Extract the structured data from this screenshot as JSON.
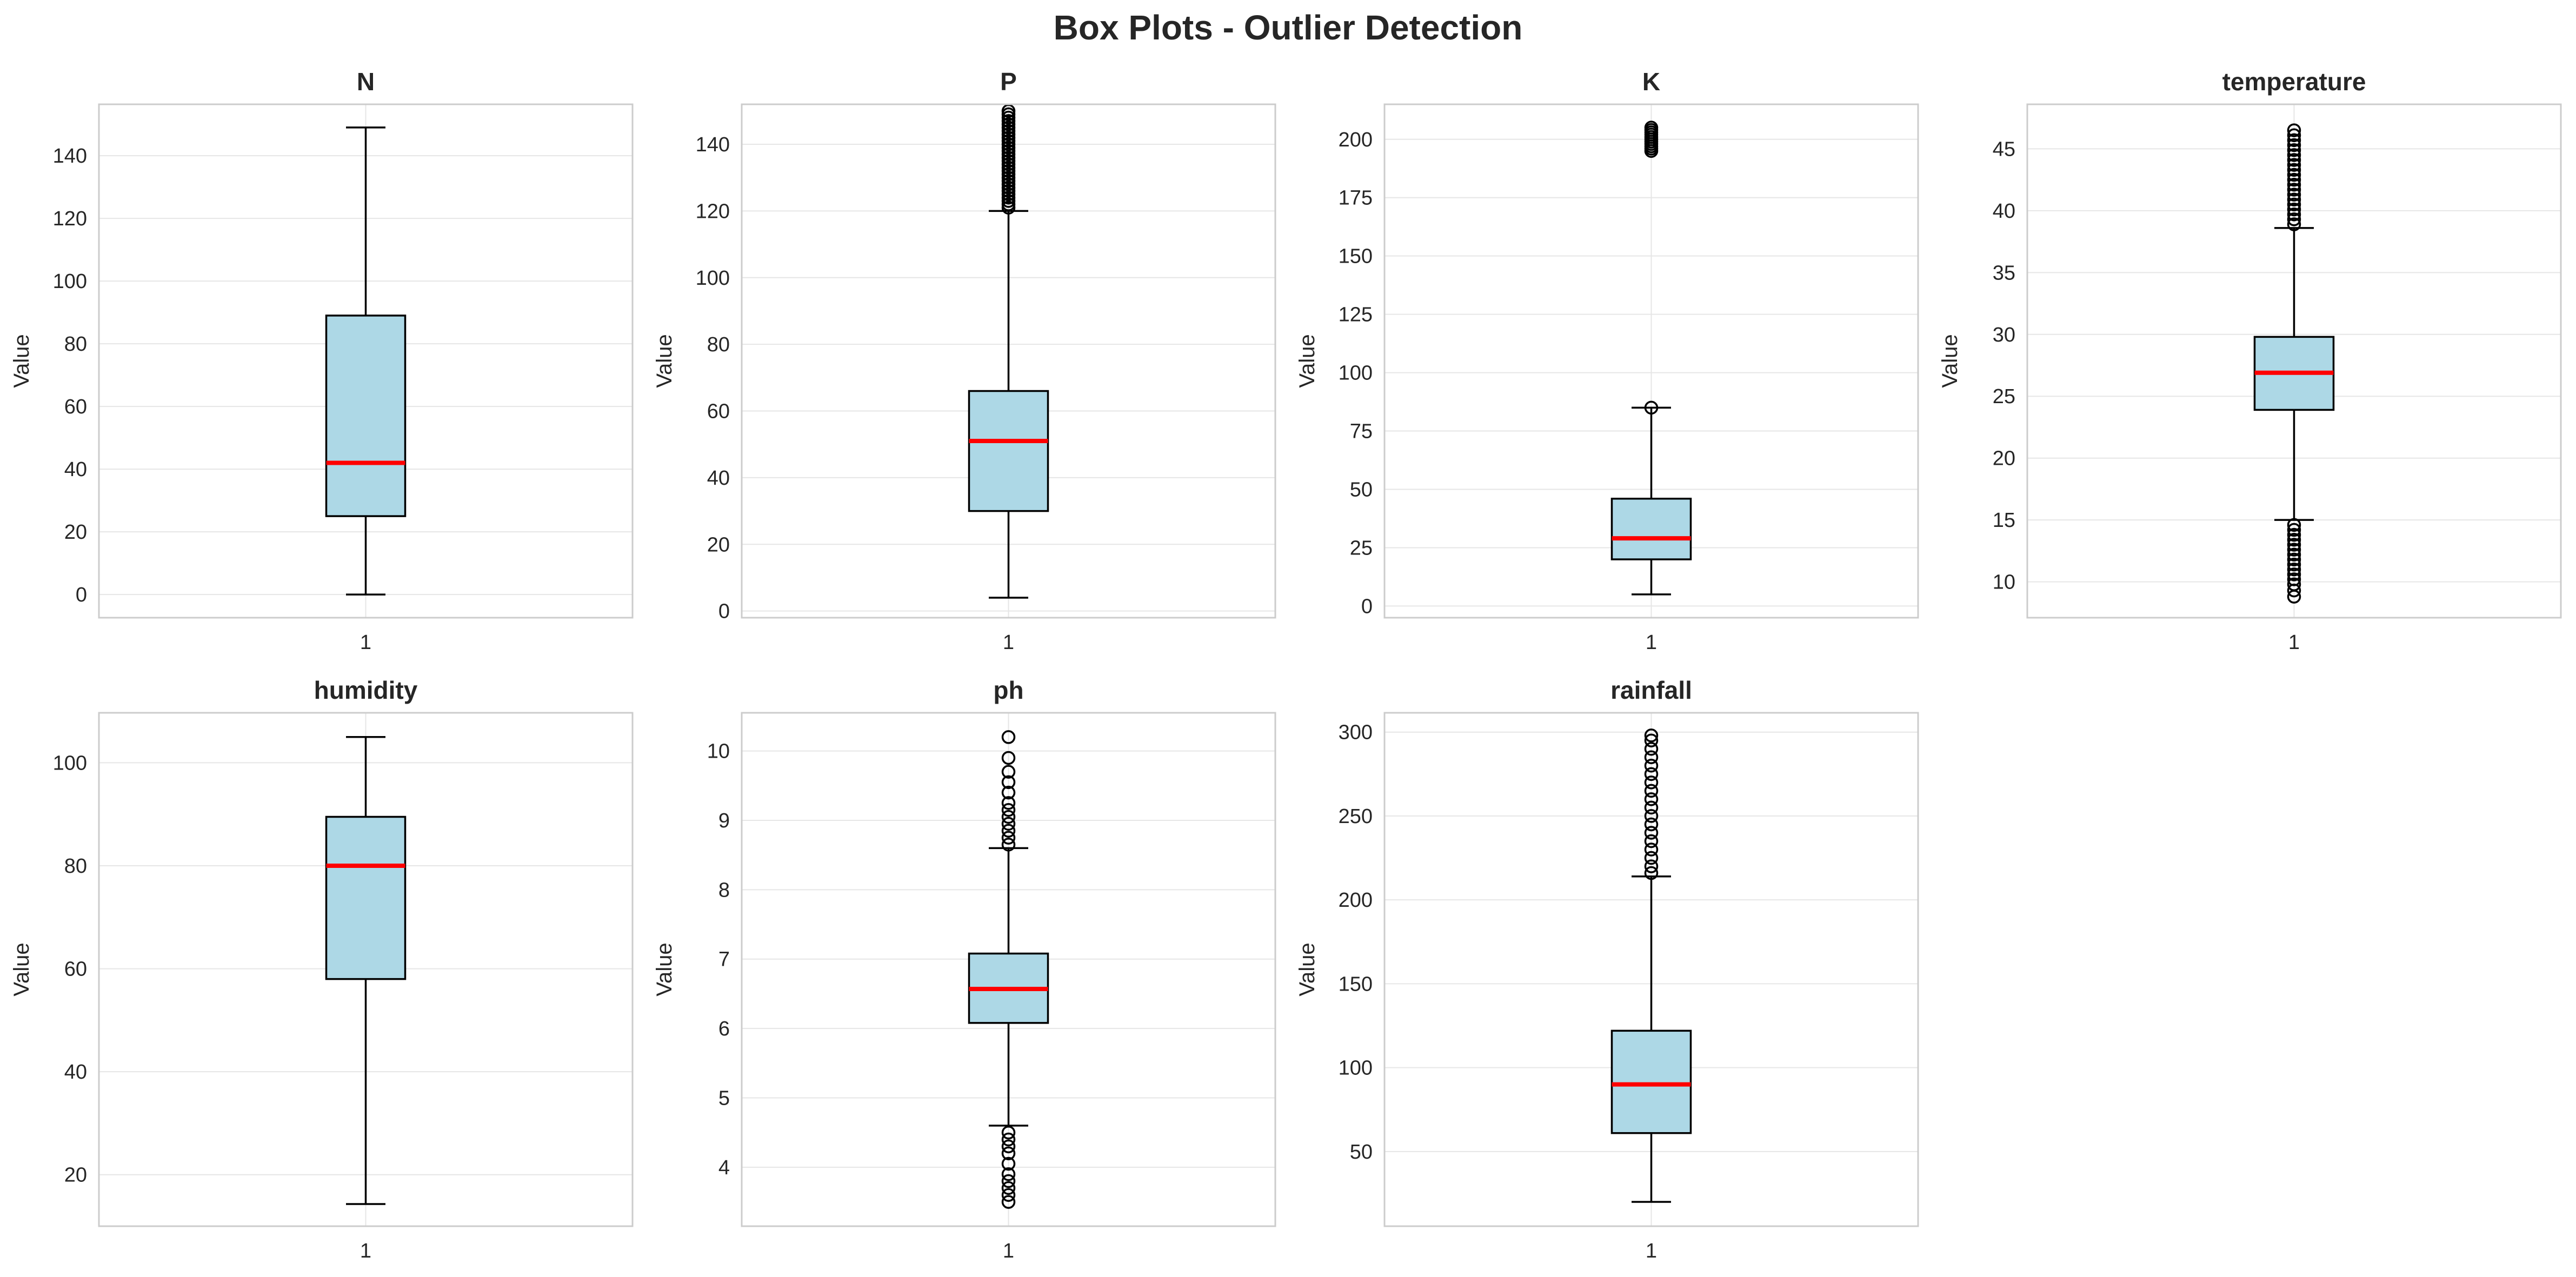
{
  "title": "Box Plots - Outlier Detection",
  "colors": {
    "box_fill": "#add8e6",
    "median": "#ff0000",
    "grid": "#e6e6e6",
    "frame": "#cccccc",
    "text": "#262626"
  },
  "chart_data": [
    {
      "type": "box",
      "title": "N",
      "ylabel": "Value",
      "xtick": "1",
      "ylim": [
        -7.4,
        156.4
      ],
      "yticks": [
        0,
        20,
        40,
        60,
        80,
        100,
        120,
        140
      ],
      "grid": true,
      "whisker_low": 0,
      "q1": 25,
      "median": 42,
      "q3": 89,
      "whisker_high": 149,
      "outliers": []
    },
    {
      "type": "box",
      "title": "P",
      "ylabel": "Value",
      "xtick": "1",
      "ylim": [
        -2,
        152
      ],
      "yticks": [
        0,
        20,
        40,
        60,
        80,
        100,
        120,
        140
      ],
      "grid": true,
      "whisker_low": 4,
      "q1": 30,
      "median": 51,
      "q3": 66,
      "whisker_high": 120,
      "outliers": [
        121,
        122,
        123,
        124,
        125,
        126,
        127,
        128,
        129,
        130,
        131,
        132,
        133,
        134,
        135,
        136,
        137,
        138,
        139,
        140,
        141,
        142,
        143,
        144,
        145,
        146,
        147,
        148,
        149,
        150
      ]
    },
    {
      "type": "box",
      "title": "K",
      "ylabel": "Value",
      "xtick": "1",
      "ylim": [
        -5,
        215
      ],
      "yticks": [
        0,
        25,
        50,
        75,
        100,
        125,
        150,
        175,
        200
      ],
      "grid": true,
      "whisker_low": 5,
      "q1": 20,
      "median": 29,
      "q3": 46,
      "whisker_high": 85,
      "outliers": [
        85,
        195,
        196,
        197,
        198,
        199,
        200,
        201,
        202,
        203,
        204,
        205
      ]
    },
    {
      "type": "box",
      "title": "temperature",
      "ylabel": "Value",
      "xtick": "1",
      "ylim": [
        7.1,
        48.6
      ],
      "yticks": [
        10,
        15,
        20,
        25,
        30,
        35,
        40,
        45
      ],
      "grid": true,
      "whisker_low": 15.0,
      "q1": 23.9,
      "median": 26.9,
      "q3": 29.8,
      "whisker_high": 38.6,
      "outliers": [
        8.8,
        9.3,
        9.8,
        10.2,
        10.6,
        11.0,
        11.4,
        11.8,
        12.2,
        12.6,
        13.0,
        13.4,
        13.8,
        14.2,
        14.6,
        38.9,
        39.3,
        39.7,
        40.1,
        40.5,
        40.9,
        41.3,
        41.7,
        42.1,
        42.5,
        42.9,
        43.3,
        43.7,
        44.1,
        44.5,
        44.9,
        45.3,
        45.7,
        46.1,
        46.5
      ]
    },
    {
      "type": "box",
      "title": "humidity",
      "ylabel": "Value",
      "xtick": "1",
      "ylim": [
        10.0,
        109.7
      ],
      "yticks": [
        20,
        40,
        60,
        80,
        100
      ],
      "grid": true,
      "whisker_low": 14.3,
      "q1": 58,
      "median": 80,
      "q3": 89.5,
      "whisker_high": 105,
      "outliers": []
    },
    {
      "type": "box",
      "title": "ph",
      "ylabel": "Value",
      "xtick": "1",
      "ylim": [
        3.15,
        10.55
      ],
      "yticks": [
        4,
        5,
        6,
        7,
        8,
        9,
        10
      ],
      "grid": true,
      "whisker_low": 4.6,
      "q1": 6.08,
      "median": 6.57,
      "q3": 7.08,
      "whisker_high": 8.6,
      "outliers": [
        3.5,
        3.6,
        3.7,
        3.8,
        3.9,
        4.05,
        4.2,
        4.3,
        4.4,
        4.5,
        8.65,
        8.75,
        8.85,
        8.95,
        9.05,
        9.15,
        9.25,
        9.4,
        9.55,
        9.7,
        9.9,
        10.2
      ]
    },
    {
      "type": "box",
      "title": "rainfall",
      "ylabel": "Value",
      "xtick": "1",
      "ylim": [
        5.5,
        311.5
      ],
      "yticks": [
        50,
        100,
        150,
        200,
        250,
        300
      ],
      "grid": true,
      "whisker_low": 20,
      "q1": 61,
      "median": 90,
      "q3": 122,
      "whisker_high": 214,
      "outliers": [
        216,
        220,
        225,
        230,
        235,
        240,
        245,
        250,
        255,
        260,
        265,
        270,
        275,
        280,
        285,
        290,
        295,
        298
      ]
    }
  ]
}
